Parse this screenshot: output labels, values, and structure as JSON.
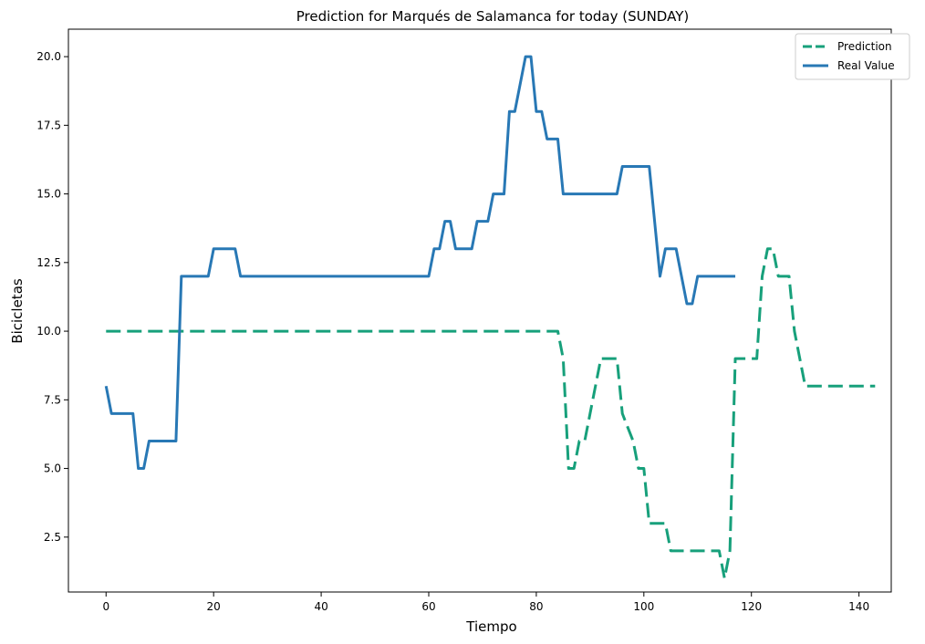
{
  "chart_data": {
    "type": "line",
    "title": "Prediction for Marqués de Salamanca for today (SUNDAY)",
    "xlabel": "Tiempo",
    "ylabel": "Bicicletas",
    "xlim": [
      -7,
      146
    ],
    "ylim": [
      0.5,
      21
    ],
    "xticks": [
      0,
      20,
      40,
      60,
      80,
      100,
      120,
      140
    ],
    "yticks": [
      2.5,
      5.0,
      7.5,
      10.0,
      12.5,
      15.0,
      17.5,
      20.0
    ],
    "xtick_labels": [
      "0",
      "20",
      "40",
      "60",
      "80",
      "100",
      "120",
      "140"
    ],
    "ytick_labels": [
      "2.5",
      "5.0",
      "7.5",
      "10.0",
      "12.5",
      "15.0",
      "17.5",
      "20.0"
    ],
    "grid": false,
    "legend_position": "top-right",
    "series": [
      {
        "name": "Prediction",
        "color": "#17a07b",
        "style": "dashed",
        "points": [
          [
            0,
            10
          ],
          [
            84,
            10
          ],
          [
            85,
            9
          ],
          [
            86,
            5
          ],
          [
            87,
            5
          ],
          [
            88,
            6
          ],
          [
            89,
            6
          ],
          [
            92,
            9
          ],
          [
            95,
            9
          ],
          [
            96,
            7
          ],
          [
            98,
            6
          ],
          [
            99,
            5
          ],
          [
            100,
            5
          ],
          [
            101,
            3
          ],
          [
            103,
            3
          ],
          [
            104,
            3
          ],
          [
            105,
            2
          ],
          [
            114,
            2
          ],
          [
            115,
            1
          ],
          [
            116,
            2
          ],
          [
            117,
            9
          ],
          [
            121,
            9
          ],
          [
            122,
            12
          ],
          [
            123,
            13
          ],
          [
            124,
            13
          ],
          [
            125,
            12
          ],
          [
            127,
            12
          ],
          [
            128,
            10
          ],
          [
            130,
            8
          ],
          [
            143,
            8
          ]
        ]
      },
      {
        "name": "Real Value",
        "color": "#2878b5",
        "style": "solid",
        "points": [
          [
            0,
            8
          ],
          [
            1,
            7
          ],
          [
            5,
            7
          ],
          [
            6,
            5
          ],
          [
            7,
            5
          ],
          [
            8,
            6
          ],
          [
            13,
            6
          ],
          [
            14,
            12
          ],
          [
            19,
            12
          ],
          [
            20,
            13
          ],
          [
            24,
            13
          ],
          [
            25,
            12
          ],
          [
            60,
            12
          ],
          [
            61,
            13
          ],
          [
            62,
            13
          ],
          [
            63,
            14
          ],
          [
            64,
            14
          ],
          [
            65,
            13
          ],
          [
            68,
            13
          ],
          [
            69,
            14
          ],
          [
            71,
            14
          ],
          [
            72,
            15
          ],
          [
            74,
            15
          ],
          [
            75,
            18
          ],
          [
            76,
            18
          ],
          [
            78,
            20
          ],
          [
            79,
            20
          ],
          [
            80,
            18
          ],
          [
            81,
            18
          ],
          [
            82,
            17
          ],
          [
            84,
            17
          ],
          [
            85,
            15
          ],
          [
            95,
            15
          ],
          [
            96,
            16
          ],
          [
            101,
            16
          ],
          [
            103,
            12
          ],
          [
            104,
            13
          ],
          [
            106,
            13
          ],
          [
            108,
            11
          ],
          [
            109,
            11
          ],
          [
            110,
            12
          ],
          [
            117,
            12
          ]
        ]
      }
    ]
  }
}
